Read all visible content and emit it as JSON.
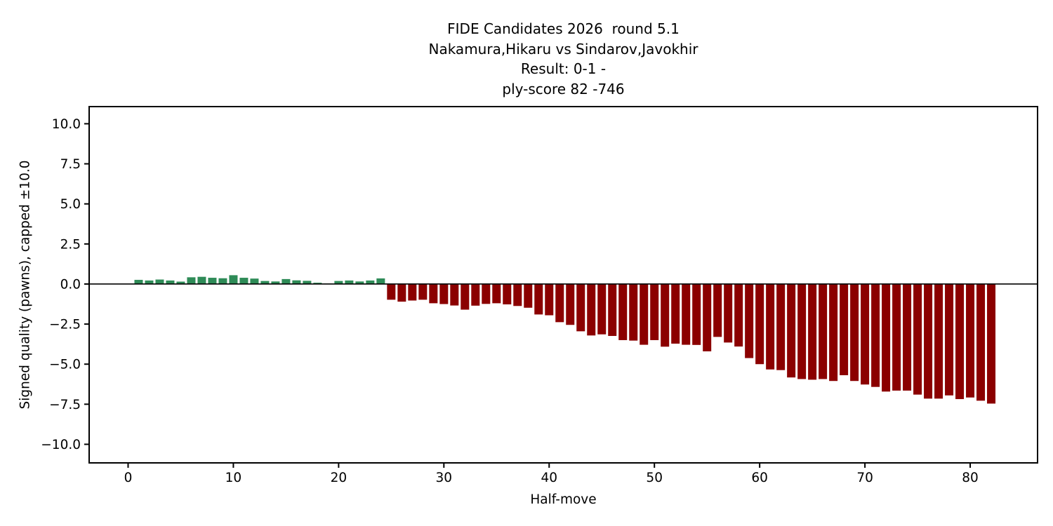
{
  "title_lines": [
    "FIDE Candidates 2026  round 5.1",
    "Nakamura,Hikaru vs Sindarov,Javokhir",
    "Result: 0-1 -",
    "ply-score 82 -746"
  ],
  "chart_data": {
    "type": "bar",
    "title": "FIDE Candidates 2026  round 5.1\nNakamura,Hikaru vs Sindarov,Javokhir\nResult: 0-1 -\nply-score 82 -746",
    "xlabel": "Half-move",
    "ylabel": "Signed quality (pawns), capped ±10.0",
    "x": [
      1,
      2,
      3,
      4,
      5,
      6,
      7,
      8,
      9,
      10,
      11,
      12,
      13,
      14,
      15,
      16,
      17,
      18,
      19,
      20,
      21,
      22,
      23,
      24,
      25,
      26,
      27,
      28,
      29,
      30,
      31,
      32,
      33,
      34,
      35,
      36,
      37,
      38,
      39,
      40,
      41,
      42,
      43,
      44,
      45,
      46,
      47,
      48,
      49,
      50,
      51,
      52,
      53,
      54,
      55,
      56,
      57,
      58,
      59,
      60,
      61,
      62,
      63,
      64,
      65,
      66,
      67,
      68,
      69,
      70,
      71,
      72,
      73,
      74,
      75,
      76,
      77,
      78,
      79,
      80,
      81,
      82
    ],
    "values": [
      0.26,
      0.22,
      0.28,
      0.22,
      0.15,
      0.42,
      0.45,
      0.39,
      0.36,
      0.55,
      0.39,
      0.34,
      0.19,
      0.16,
      0.31,
      0.23,
      0.2,
      0.08,
      0.03,
      0.19,
      0.22,
      0.16,
      0.22,
      0.35,
      -0.98,
      -1.1,
      -1.03,
      -0.98,
      -1.2,
      -1.25,
      -1.34,
      -1.6,
      -1.35,
      -1.24,
      -1.2,
      -1.27,
      -1.37,
      -1.48,
      -1.9,
      -1.95,
      -2.38,
      -2.55,
      -2.95,
      -3.21,
      -3.14,
      -3.24,
      -3.5,
      -3.53,
      -3.79,
      -3.5,
      -3.91,
      -3.72,
      -3.79,
      -3.8,
      -4.2,
      -3.3,
      -3.65,
      -3.9,
      -4.62,
      -5.0,
      -5.33,
      -5.37,
      -5.83,
      -5.93,
      -5.97,
      -5.93,
      -6.05,
      -5.69,
      -6.05,
      -6.27,
      -6.42,
      -6.71,
      -6.65,
      -6.65,
      -6.9,
      -7.15,
      -7.15,
      -6.95,
      -7.18,
      -7.08,
      -7.28,
      -7.46
    ],
    "bar_width_units": 0.8,
    "colors": {
      "positive": "#2e8b57",
      "negative": "#8b0000",
      "axis": "#000000",
      "background": "#ffffff"
    },
    "xticks": {
      "values": [
        0,
        10,
        20,
        30,
        40,
        50,
        60,
        70,
        80
      ],
      "labels": [
        "0",
        "10",
        "20",
        "30",
        "40",
        "50",
        "60",
        "70",
        "80"
      ]
    },
    "yticks": {
      "values": [
        10.0,
        7.5,
        5.0,
        2.5,
        0.0,
        -2.5,
        -5.0,
        -7.5,
        -10.0
      ],
      "labels": [
        "10.0",
        "7.5",
        "5.0",
        "2.5",
        "0.0",
        "−2.5",
        "−5.0",
        "−7.5",
        "−10.0"
      ]
    },
    "xlim": [
      -3.7,
      86.4
    ],
    "ylim": [
      -11.16,
      11.07
    ],
    "zero_line": true,
    "grid": false,
    "legend": null
  }
}
